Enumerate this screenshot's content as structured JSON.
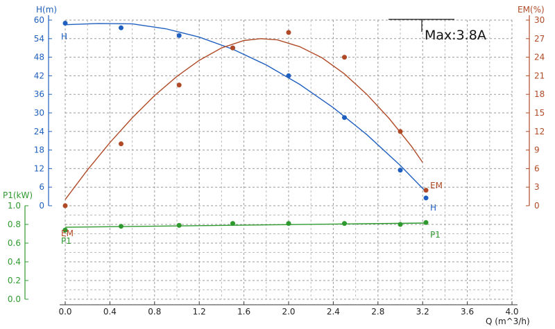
{
  "chart_data": {
    "type": "line",
    "x_axis": {
      "label": "Q (m^3/h)",
      "range": [
        0,
        4.0
      ],
      "ticks": [
        "0.0",
        "0.4",
        "0.8",
        "1.2",
        "1.6",
        "2.0",
        "2.4",
        "2.8",
        "3.2",
        "3.6",
        "4.0"
      ]
    },
    "y_axes": {
      "H": {
        "label": "H(m)",
        "range": [
          0,
          60
        ],
        "ticks": [
          "0",
          "6",
          "12",
          "18",
          "24",
          "30",
          "36",
          "42",
          "48",
          "54",
          "60"
        ],
        "color": "#1f5fbf"
      },
      "EM": {
        "label": "EM(%)",
        "range": [
          0,
          30
        ],
        "ticks": [
          "0",
          "3",
          "6",
          "9",
          "12",
          "15",
          "18",
          "21",
          "24",
          "27",
          "30"
        ],
        "color": "#b04a26"
      },
      "P1": {
        "label": "P1(kW)",
        "range": [
          0,
          1.0
        ],
        "ticks": [
          "0.0",
          "0.2",
          "0.4",
          "0.6",
          "0.8",
          "1.0"
        ],
        "color": "#2e9a2e"
      }
    },
    "series": [
      {
        "name": "H",
        "axis": "H",
        "color": "#1f5fbf",
        "points": [
          [
            0.0,
            59
          ],
          [
            0.5,
            57.5
          ],
          [
            1.02,
            55
          ],
          [
            1.5,
            51
          ],
          [
            2.0,
            42
          ],
          [
            2.5,
            28.5
          ],
          [
            3.0,
            11.5
          ],
          [
            3.23,
            2.5
          ]
        ],
        "fit": [
          [
            0.0,
            58.5
          ],
          [
            0.3,
            58.9
          ],
          [
            0.6,
            58.8
          ],
          [
            0.9,
            57.2
          ],
          [
            1.2,
            54.5
          ],
          [
            1.5,
            50.6
          ],
          [
            1.8,
            45.5
          ],
          [
            2.1,
            39.2
          ],
          [
            2.4,
            31.7
          ],
          [
            2.7,
            23.0
          ],
          [
            3.0,
            13.0
          ],
          [
            3.23,
            4.5
          ]
        ]
      },
      {
        "name": "EM",
        "axis": "EM",
        "color": "#b04a26",
        "points": [
          [
            0.0,
            0.0
          ],
          [
            0.5,
            10.0
          ],
          [
            1.02,
            19.5
          ],
          [
            1.5,
            25.5
          ],
          [
            2.0,
            28.0
          ],
          [
            2.5,
            24.0
          ],
          [
            3.0,
            12.0
          ],
          [
            3.23,
            2.5
          ]
        ],
        "fit": [
          [
            0.0,
            1.0
          ],
          [
            0.2,
            5.8
          ],
          [
            0.4,
            10.2
          ],
          [
            0.6,
            14.2
          ],
          [
            0.8,
            17.8
          ],
          [
            1.0,
            20.9
          ],
          [
            1.2,
            23.5
          ],
          [
            1.4,
            25.5
          ],
          [
            1.6,
            26.7
          ],
          [
            1.75,
            27.0
          ],
          [
            1.9,
            26.8
          ],
          [
            2.1,
            25.7
          ],
          [
            2.3,
            23.9
          ],
          [
            2.5,
            21.3
          ],
          [
            2.7,
            18.0
          ],
          [
            2.9,
            14.1
          ],
          [
            3.1,
            9.6
          ],
          [
            3.2,
            7.0
          ]
        ]
      },
      {
        "name": "P1",
        "axis": "P1",
        "color": "#2e9a2e",
        "points": [
          [
            0.0,
            0.74
          ],
          [
            0.5,
            0.78
          ],
          [
            1.02,
            0.79
          ],
          [
            1.5,
            0.81
          ],
          [
            2.0,
            0.81
          ],
          [
            2.5,
            0.81
          ],
          [
            3.0,
            0.8
          ],
          [
            3.23,
            0.82
          ]
        ],
        "fit": [
          [
            0.0,
            0.77
          ],
          [
            3.23,
            0.815
          ]
        ]
      }
    ],
    "curve_labels": {
      "H_start": "H",
      "H_end": "H",
      "EM_start": "EM",
      "EM_end": "EM",
      "P1_start": "P1",
      "P1_end": "P1"
    },
    "annotation": "Max:3.8A",
    "grid": true
  }
}
